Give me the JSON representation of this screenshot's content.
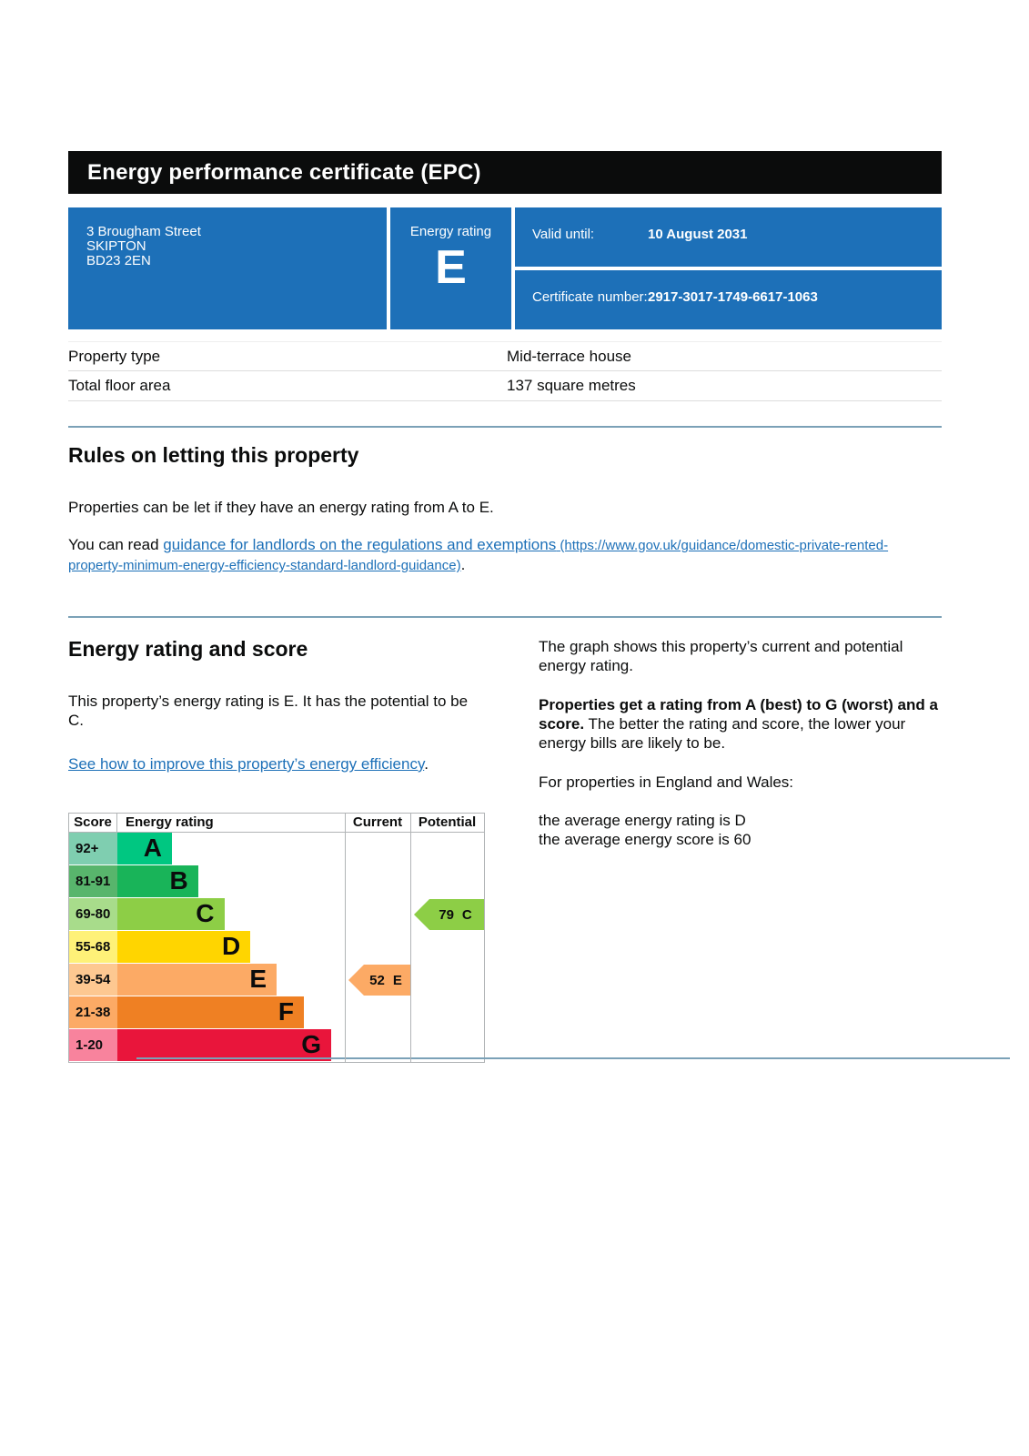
{
  "header": {
    "title": "Energy performance certificate (EPC)"
  },
  "summary": {
    "address_lines": [
      "3 Brougham Street",
      "SKIPTON",
      "BD23 2EN"
    ],
    "energy_rating_label": "Energy rating",
    "energy_rating": "E",
    "valid_until_label": "Valid until:",
    "valid_until_value": "10 August 2031",
    "certificate_number_label": "Certificate number:",
    "certificate_number_value": "2917-3017-1749-6617-1063"
  },
  "property_details": {
    "rows": [
      {
        "label": "Property type",
        "value": "Mid-terrace house"
      },
      {
        "label": "Total floor area",
        "value": "137 square metres"
      }
    ]
  },
  "rules_section": {
    "heading": "Rules on letting this property",
    "paragraph1": "Properties can be let if they have an energy rating from A to E.",
    "paragraph2_prefix": "You can read ",
    "link_text": "guidance for landlords on the regulations and exemptions",
    "link_url_text": " (https://www.gov.uk/guidance/domestic-private-rented-property-minimum-energy-efficiency-standard-landlord-guidance)",
    "paragraph2_suffix": "."
  },
  "rating_section": {
    "heading": "Energy rating and score",
    "paragraph1": "This property’s energy rating is E. It has the potential to be C.",
    "improve_link_text": "See how to improve this property’s energy efficiency",
    "improve_link_suffix": ".",
    "right_column": {
      "paragraph1": "The graph shows this property’s current and potential energy rating.",
      "paragraph2_bold": "Properties get a rating from A (best) to G (worst) and a score.",
      "paragraph2_rest": " The better the rating and score, the lower your energy bills are likely to be.",
      "paragraph3": "For properties in England and Wales:",
      "stat1": "the average energy rating is D",
      "stat2": "the average energy score is 60"
    }
  },
  "chart_data": {
    "type": "bar",
    "title": "EPC energy rating bands with current and potential scores",
    "headers": {
      "score": "Score",
      "rating": "Energy rating",
      "current": "Current",
      "potential": "Potential"
    },
    "bands": [
      {
        "score_range": "92+",
        "letter": "A",
        "color": "#00c781",
        "score_color": "#7fceb0",
        "width_pct": 24
      },
      {
        "score_range": "81-91",
        "letter": "B",
        "color": "#19b459",
        "score_color": "#58b56c",
        "width_pct": 35.5
      },
      {
        "score_range": "69-80",
        "letter": "C",
        "color": "#8dce46",
        "score_color": "#a8dc8b",
        "width_pct": 47
      },
      {
        "score_range": "55-68",
        "letter": "D",
        "color": "#ffd500",
        "score_color": "#fef178",
        "width_pct": 58.5
      },
      {
        "score_range": "39-54",
        "letter": "E",
        "color": "#fcaa65",
        "score_color": "#fdc891",
        "width_pct": 70
      },
      {
        "score_range": "21-38",
        "letter": "F",
        "color": "#ef8023",
        "score_color": "#fcaa65",
        "width_pct": 82
      },
      {
        "score_range": "1-20",
        "letter": "G",
        "color": "#e9153b",
        "score_color": "#f8839d",
        "width_pct": 94
      }
    ],
    "current": {
      "value": "52",
      "letter": "E",
      "color": "#fcaa65",
      "band_index": 4
    },
    "potential": {
      "value": "79",
      "letter": "C",
      "color": "#8dce46",
      "band_index": 2
    },
    "legend_position": "columns-right",
    "grid": false
  },
  "colors": {
    "brand_blue": "#1d70b8",
    "title_bar": "#0b0c0c",
    "section_divider": "#7ba1b7",
    "chart_border": "#b1b4b6",
    "link": "#1d70b8"
  }
}
